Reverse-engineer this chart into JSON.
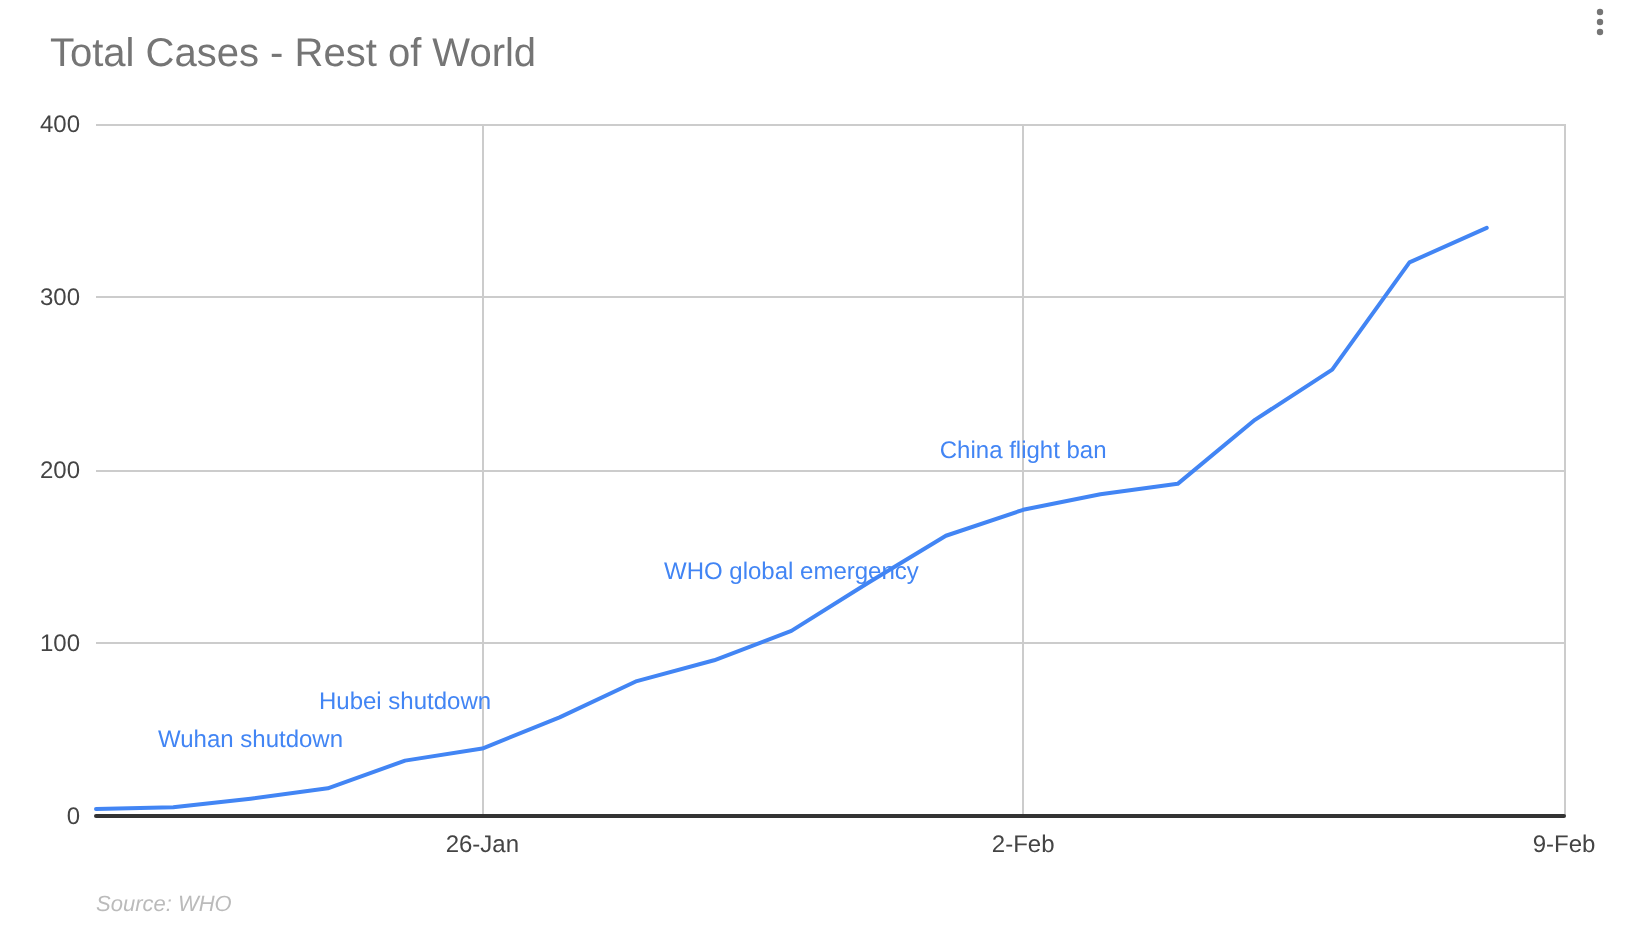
{
  "chart_data": {
    "type": "line",
    "title": "Total Cases - Rest of World",
    "x": [
      "--01-21",
      "--01-22",
      "--01-23",
      "--01-24",
      "--01-25",
      "--01-26",
      "--01-27",
      "--01-28",
      "--01-29",
      "--01-30",
      "--01-31",
      "--02-01",
      "--02-02",
      "--02-03",
      "--02-04",
      "--02-05",
      "--02-06",
      "--02-07",
      "--02-08"
    ],
    "series": [
      {
        "color": "#4285f4",
        "values": [
          4,
          5,
          10,
          16,
          32,
          39,
          57,
          78,
          90,
          107,
          135,
          162,
          177,
          186,
          192,
          229,
          258,
          320,
          340
        ]
      }
    ],
    "xlim": [
      "--01-21",
      "--02-09"
    ],
    "xticks": [
      {
        "value": "--01-26",
        "label": "26-Jan"
      },
      {
        "value": "--02-02",
        "label": "2-Feb"
      },
      {
        "value": "--02-09",
        "label": "9-Feb"
      }
    ],
    "ylim": [
      0,
      400
    ],
    "yticks": [
      0,
      100,
      200,
      300,
      400
    ],
    "grid": true,
    "marker": "none",
    "line_style": "solid",
    "annotations": [
      {
        "text": "Wuhan shutdown",
        "x": "--01-23",
        "y": 10
      },
      {
        "text": "Hubei shutdown",
        "x": "--01-25",
        "y": 32
      },
      {
        "text": "WHO global emergency",
        "x": "--01-30",
        "y": 107
      },
      {
        "text": "China flight ban",
        "x": "--02-02",
        "y": 177
      },
      "Source: WHO"
    ]
  }
}
